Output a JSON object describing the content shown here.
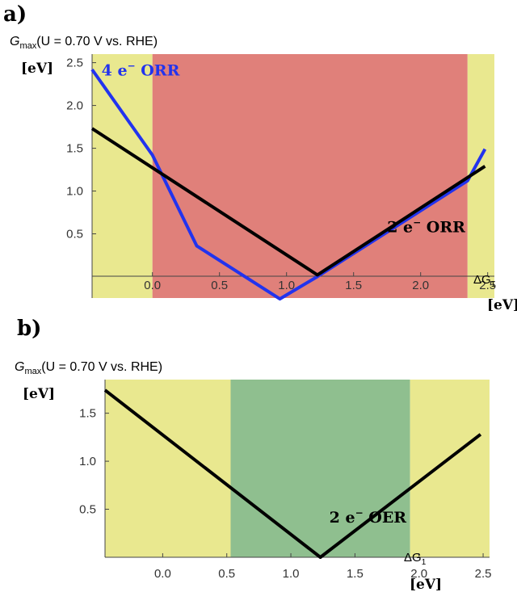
{
  "chart_data": [
    {
      "panel": "a)",
      "type": "line",
      "title": "G_max(U = 0.70  V vs. RHE)",
      "title_parts": {
        "symbol": "G",
        "sub": "max",
        "rest": "(U = 0.70  V vs. RHE)"
      },
      "ylabel_unit": "[eV]",
      "xlabel": {
        "symbol": "ΔG",
        "sub": "1"
      },
      "xlabel_unit": "[eV]",
      "xlim": [
        -0.45,
        2.55
      ],
      "ylim": [
        -0.25,
        2.6
      ],
      "xticks": [
        0.0,
        0.5,
        1.0,
        1.5,
        2.0,
        2.5
      ],
      "xtick_labels": [
        "0.0",
        "0.5",
        "1.0",
        "1.5",
        "2.0",
        "2.5"
      ],
      "yticks": [
        0.5,
        1.0,
        1.5,
        2.0,
        2.5
      ],
      "ytick_labels": [
        "0.5",
        "1.0",
        "1.5",
        "2.0",
        "2.5"
      ],
      "regions": [
        {
          "from": -0.45,
          "to": 0.0,
          "color": "#e9e88f"
        },
        {
          "from": 0.0,
          "to": 2.35,
          "color": "#e0807a"
        },
        {
          "from": 2.35,
          "to": 2.55,
          "color": "#e9e88f"
        }
      ],
      "series": [
        {
          "name": "4 e⁻ ORR",
          "name_parts": {
            "pre": "4 e",
            "sup": "−",
            "post": " ORR"
          },
          "color": "#2233ee",
          "label_pos": [
            -0.38,
            2.35
          ],
          "x": [
            -0.45,
            0.0,
            0.33,
            0.95,
            1.23,
            2.35,
            2.48
          ],
          "y": [
            2.42,
            1.42,
            0.36,
            -0.26,
            0.0,
            1.12,
            1.49
          ]
        },
        {
          "name": "2 e⁻ ORR",
          "name_parts": {
            "pre": "2 e",
            "sup": "−",
            "post": " ORR"
          },
          "color": "#000000",
          "label_pos": [
            1.75,
            0.52
          ],
          "x": [
            -0.45,
            1.23,
            2.48
          ],
          "y": [
            1.73,
            0.02,
            1.29
          ]
        }
      ]
    },
    {
      "panel": "b)",
      "type": "line",
      "title": "G_max(U = 0.70  V vs. RHE)",
      "title_parts": {
        "symbol": "G",
        "sub": "max",
        "rest": "(U = 0.70  V vs. RHE)"
      },
      "ylabel_unit": "[eV]",
      "xlabel": {
        "symbol": "ΔG",
        "sub": "1"
      },
      "xlabel_unit": "[eV]",
      "xlim": [
        -0.45,
        2.55
      ],
      "ylim": [
        0.0,
        1.85
      ],
      "xticks": [
        0.0,
        0.5,
        1.0,
        1.5,
        2.0,
        2.5
      ],
      "xtick_labels": [
        "0.0",
        "0.5",
        "1.0",
        "1.5",
        "2.0",
        "2.5"
      ],
      "yticks": [
        0.5,
        1.0,
        1.5
      ],
      "ytick_labels": [
        "0.5",
        "1.0",
        "1.5"
      ],
      "regions": [
        {
          "from": -0.45,
          "to": 0.53,
          "color": "#e9e88f"
        },
        {
          "from": 0.53,
          "to": 1.93,
          "color": "#8fbf8f"
        },
        {
          "from": 1.93,
          "to": 2.55,
          "color": "#e9e88f"
        }
      ],
      "series": [
        {
          "name": "2 e⁻ OER",
          "name_parts": {
            "pre": "2 e",
            "sup": "−",
            "post": " OER"
          },
          "color": "#000000",
          "label_pos": [
            1.3,
            0.36
          ],
          "x": [
            -0.45,
            1.23,
            2.48
          ],
          "y": [
            1.74,
            0.0,
            1.28
          ]
        }
      ]
    }
  ]
}
